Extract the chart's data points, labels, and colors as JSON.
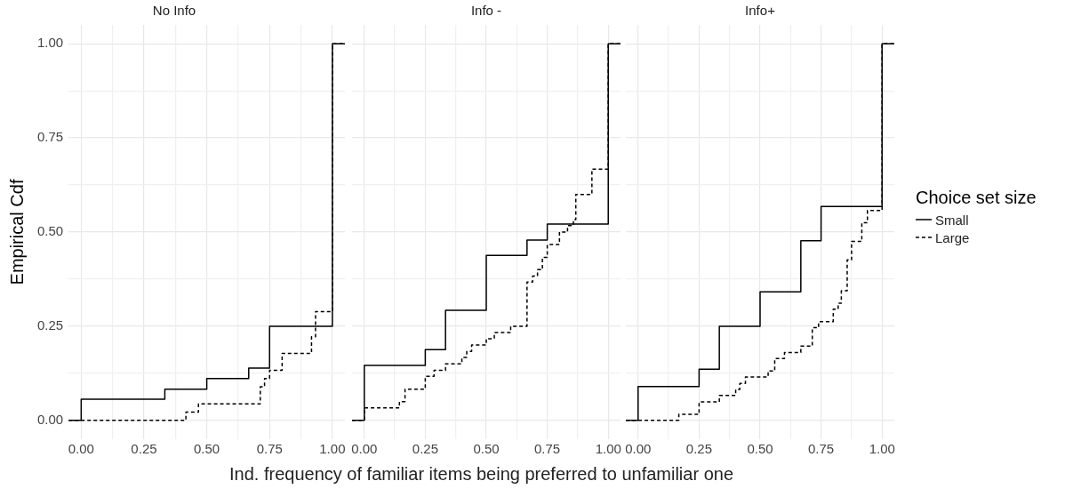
{
  "chart_data": [
    {
      "type": "step",
      "title": "No Info",
      "ylabel": "Empirical Cdf",
      "xlim": [
        -0.05,
        1.05
      ],
      "ylim": [
        -0.05,
        1.05
      ],
      "xticks": [
        {
          "value": 0,
          "label": "0.00"
        },
        {
          "value": 0.125,
          "label": null
        },
        {
          "value": 0.25,
          "label": "0.25"
        },
        {
          "value": 0.375,
          "label": null
        },
        {
          "value": 0.5,
          "label": "0.50"
        },
        {
          "value": 0.625,
          "label": null
        },
        {
          "value": 0.75,
          "label": "0.75"
        },
        {
          "value": 0.875,
          "label": null
        },
        {
          "value": 1,
          "label": "1.00"
        }
      ],
      "yticks": [
        {
          "value": 0,
          "label": "0.00"
        },
        {
          "value": 0.125,
          "label": null
        },
        {
          "value": 0.25,
          "label": "0.25"
        },
        {
          "value": 0.375,
          "label": null
        },
        {
          "value": 0.5,
          "label": "0.50"
        },
        {
          "value": 0.625,
          "label": null
        },
        {
          "value": 0.75,
          "label": "0.75"
        },
        {
          "value": 0.875,
          "label": null
        },
        {
          "value": 1,
          "label": "1.00"
        }
      ],
      "grid": true,
      "series": [
        {
          "color": "#000000",
          "line_style": "solid",
          "x": [
            -0.05,
            0,
            0.333,
            0.5,
            0.667,
            0.75,
            1,
            1.05
          ],
          "values": [
            0,
            0.056,
            0.083,
            0.111,
            0.139,
            0.25,
            1,
            1
          ]
        },
        {
          "color": "#000000",
          "line_style": "dashed",
          "x": [
            -0.05,
            0.417,
            0.467,
            0.713,
            0.73,
            0.75,
            0.8,
            0.917,
            0.933,
            1,
            1.05
          ],
          "values": [
            0,
            0.022,
            0.044,
            0.089,
            0.111,
            0.133,
            0.178,
            0.222,
            0.289,
            1,
            1
          ]
        }
      ]
    },
    {
      "type": "step",
      "title": "Info -",
      "xlabel": "Ind. frequency of familiar items being preferred to unfamiliar one",
      "xlim": [
        -0.05,
        1.05
      ],
      "ylim": [
        -0.05,
        1.05
      ],
      "tick_labels": "x",
      "xticks": [
        {
          "value": 0,
          "label": "0.00"
        },
        {
          "value": 0.125,
          "label": null
        },
        {
          "value": 0.25,
          "label": "0.25"
        },
        {
          "value": 0.375,
          "label": null
        },
        {
          "value": 0.5,
          "label": "0.50"
        },
        {
          "value": 0.625,
          "label": null
        },
        {
          "value": 0.75,
          "label": "0.75"
        },
        {
          "value": 0.875,
          "label": null
        },
        {
          "value": 1,
          "label": "1.00"
        }
      ],
      "grid": true,
      "series": [
        {
          "color": "#000000",
          "line_style": "solid",
          "x": [
            -0.05,
            0,
            0.25,
            0.333,
            0.5,
            0.667,
            0.75,
            1,
            1.05
          ],
          "values": [
            0,
            0.146,
            0.188,
            0.292,
            0.438,
            0.479,
            0.521,
            1,
            1
          ]
        },
        {
          "color": "#000000",
          "line_style": "dashed",
          "x": [
            -0.05,
            0,
            0.144,
            0.167,
            0.25,
            0.286,
            0.333,
            0.4,
            0.42,
            0.44,
            0.5,
            0.533,
            0.6,
            0.667,
            0.69,
            0.71,
            0.73,
            0.75,
            0.8,
            0.833,
            0.857,
            0.867,
            0.933,
            1,
            1.05
          ],
          "values": [
            0,
            0.033,
            0.05,
            0.083,
            0.117,
            0.133,
            0.15,
            0.167,
            0.183,
            0.2,
            0.217,
            0.233,
            0.25,
            0.367,
            0.383,
            0.4,
            0.433,
            0.467,
            0.5,
            0.517,
            0.533,
            0.6,
            0.667,
            1,
            1
          ]
        }
      ]
    },
    {
      "type": "step",
      "title": "Info+",
      "legend_title": "Choice set size",
      "legend": "right",
      "xlim": [
        -0.05,
        1.05
      ],
      "ylim": [
        -0.05,
        1.05
      ],
      "tick_labels": "x",
      "xticks": [
        {
          "value": 0,
          "label": "0.00"
        },
        {
          "value": 0.125,
          "label": null
        },
        {
          "value": 0.25,
          "label": "0.25"
        },
        {
          "value": 0.375,
          "label": null
        },
        {
          "value": 0.5,
          "label": "0.50"
        },
        {
          "value": 0.625,
          "label": null
        },
        {
          "value": 0.75,
          "label": "0.75"
        },
        {
          "value": 0.875,
          "label": null
        },
        {
          "value": 1,
          "label": "1.00"
        }
      ],
      "grid": true,
      "series": [
        {
          "name": "Small",
          "color": "#000000",
          "line_style": "solid",
          "x": [
            -0.05,
            0,
            0.25,
            0.333,
            0.5,
            0.667,
            0.75,
            1,
            1.05
          ],
          "values": [
            0,
            0.09,
            0.136,
            0.25,
            0.341,
            0.477,
            0.568,
            1,
            1
          ]
        },
        {
          "name": "Large",
          "color": "#000000",
          "line_style": "dashed",
          "x": [
            -0.05,
            0.167,
            0.25,
            0.333,
            0.4,
            0.417,
            0.44,
            0.533,
            0.56,
            0.6,
            0.667,
            0.714,
            0.74,
            0.8,
            0.82,
            0.833,
            0.857,
            0.875,
            0.917,
            0.94,
            1,
            1.05
          ],
          "values": [
            0,
            0.016,
            0.049,
            0.066,
            0.082,
            0.098,
            0.115,
            0.131,
            0.164,
            0.18,
            0.197,
            0.246,
            0.262,
            0.295,
            0.311,
            0.344,
            0.426,
            0.475,
            0.525,
            0.557,
            1,
            1
          ]
        }
      ]
    }
  ]
}
